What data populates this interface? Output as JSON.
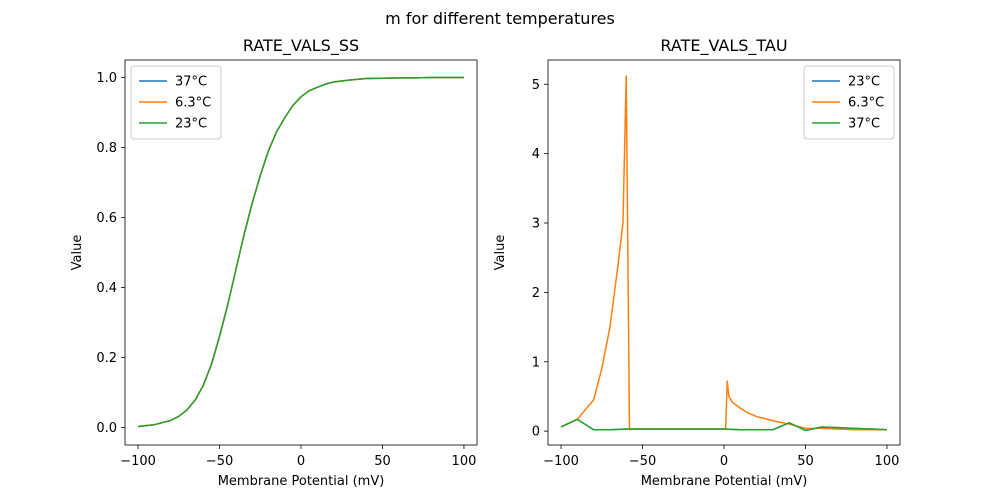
{
  "figure": {
    "title": "m for different temperatures"
  },
  "chart_data": [
    {
      "type": "line",
      "title": "RATE_VALS_SS",
      "xlabel": "Membrane Potential (mV)",
      "ylabel": "Value",
      "xlim": [
        -108,
        108
      ],
      "ylim": [
        -0.05,
        1.05
      ],
      "xticks": [
        -100,
        -50,
        0,
        50,
        100
      ],
      "xtick_labels": [
        "−100",
        "−50",
        "0",
        "50",
        "100"
      ],
      "yticks": [
        0,
        0.2,
        0.4,
        0.6,
        0.8,
        1.0
      ],
      "ytick_labels": [
        "0.0",
        "0.2",
        "0.4",
        "0.6",
        "0.8",
        "1.0"
      ],
      "legend_position": "top-left",
      "grid": false,
      "series": [
        {
          "name": "37°C",
          "color": "#1f77b4",
          "x": [
            -100,
            -90,
            -80,
            -75,
            -70,
            -65,
            -60,
            -55,
            -50,
            -45,
            -40,
            -35,
            -30,
            -25,
            -20,
            -15,
            -10,
            -5,
            0,
            5,
            10,
            15,
            20,
            30,
            40,
            50,
            60,
            70,
            80,
            90,
            100
          ],
          "y": [
            0.003,
            0.008,
            0.02,
            0.032,
            0.05,
            0.078,
            0.12,
            0.18,
            0.26,
            0.35,
            0.45,
            0.55,
            0.64,
            0.72,
            0.79,
            0.845,
            0.885,
            0.92,
            0.945,
            0.962,
            0.972,
            0.981,
            0.987,
            0.993,
            0.997,
            0.998,
            0.999,
            0.999,
            1.0,
            1.0,
            1.0
          ]
        },
        {
          "name": "6.3°C",
          "color": "#ff7f0e",
          "x": [
            -100,
            -90,
            -80,
            -75,
            -70,
            -65,
            -60,
            -55,
            -50,
            -45,
            -40,
            -35,
            -30,
            -25,
            -20,
            -15,
            -10,
            -5,
            0,
            5,
            10,
            15,
            20,
            30,
            40,
            50,
            60,
            70,
            80,
            90,
            100
          ],
          "y": [
            0.003,
            0.008,
            0.02,
            0.032,
            0.05,
            0.078,
            0.12,
            0.18,
            0.26,
            0.35,
            0.45,
            0.55,
            0.64,
            0.72,
            0.79,
            0.845,
            0.885,
            0.92,
            0.945,
            0.962,
            0.972,
            0.981,
            0.987,
            0.993,
            0.997,
            0.998,
            0.999,
            0.999,
            1.0,
            1.0,
            1.0
          ]
        },
        {
          "name": "23°C",
          "color": "#2ca02c",
          "x": [
            -100,
            -90,
            -80,
            -75,
            -70,
            -65,
            -60,
            -55,
            -50,
            -45,
            -40,
            -35,
            -30,
            -25,
            -20,
            -15,
            -10,
            -5,
            0,
            5,
            10,
            15,
            20,
            30,
            40,
            50,
            60,
            70,
            80,
            90,
            100
          ],
          "y": [
            0.003,
            0.008,
            0.02,
            0.032,
            0.05,
            0.078,
            0.12,
            0.18,
            0.26,
            0.35,
            0.45,
            0.55,
            0.64,
            0.72,
            0.79,
            0.845,
            0.885,
            0.92,
            0.945,
            0.962,
            0.972,
            0.981,
            0.987,
            0.993,
            0.997,
            0.998,
            0.999,
            0.999,
            1.0,
            1.0,
            1.0
          ]
        }
      ]
    },
    {
      "type": "line",
      "title": "RATE_VALS_TAU",
      "xlabel": "Membrane Potential (mV)",
      "ylabel": "Value",
      "xlim": [
        -108,
        108
      ],
      "ylim": [
        -0.2,
        5.35
      ],
      "xticks": [
        -100,
        -50,
        0,
        50,
        100
      ],
      "xtick_labels": [
        "−100",
        "−50",
        "0",
        "50",
        "100"
      ],
      "yticks": [
        0,
        1,
        2,
        3,
        4,
        5
      ],
      "ytick_labels": [
        "0",
        "1",
        "2",
        "3",
        "4",
        "5"
      ],
      "legend_position": "top-right",
      "grid": false,
      "series": [
        {
          "name": "23°C",
          "color": "#1f77b4",
          "x": [
            -100,
            -90,
            -80,
            -70,
            -60,
            -50,
            -40,
            -30,
            -20,
            -10,
            0,
            10,
            20,
            30,
            40,
            50,
            60,
            70,
            80,
            90,
            100
          ],
          "y": [
            0.06,
            0.17,
            0.02,
            0.02,
            0.03,
            0.03,
            0.03,
            0.03,
            0.03,
            0.03,
            0.03,
            0.02,
            0.02,
            0.02,
            0.12,
            0.01,
            0.06,
            0.05,
            0.04,
            0.03,
            0.02
          ]
        },
        {
          "name": "6.3°C",
          "color": "#ff7f0e",
          "x": [
            -100,
            -90,
            -80,
            -75,
            -70,
            -65,
            -62,
            -60,
            -58,
            -56,
            -50,
            -40,
            -30,
            -20,
            -10,
            -5,
            -1,
            1,
            2,
            3,
            5,
            10,
            15,
            20,
            30,
            40,
            45,
            50,
            60,
            70,
            80,
            90,
            100
          ],
          "y": [
            0.06,
            0.17,
            0.45,
            0.9,
            1.5,
            2.4,
            3.0,
            5.12,
            0.02,
            0.03,
            0.03,
            0.03,
            0.03,
            0.03,
            0.03,
            0.03,
            0.03,
            0.03,
            0.72,
            0.5,
            0.42,
            0.33,
            0.26,
            0.21,
            0.15,
            0.1,
            0.07,
            0.04,
            0.04,
            0.03,
            0.02,
            0.02,
            0.02
          ]
        },
        {
          "name": "37°C",
          "color": "#2ca02c",
          "x": [
            -100,
            -90,
            -80,
            -70,
            -60,
            -50,
            -40,
            -30,
            -20,
            -10,
            0,
            10,
            20,
            30,
            40,
            50,
            60,
            70,
            80,
            90,
            100
          ],
          "y": [
            0.06,
            0.17,
            0.02,
            0.02,
            0.03,
            0.03,
            0.03,
            0.03,
            0.03,
            0.03,
            0.03,
            0.02,
            0.02,
            0.02,
            0.12,
            0.01,
            0.06,
            0.05,
            0.04,
            0.03,
            0.02
          ]
        }
      ]
    }
  ]
}
